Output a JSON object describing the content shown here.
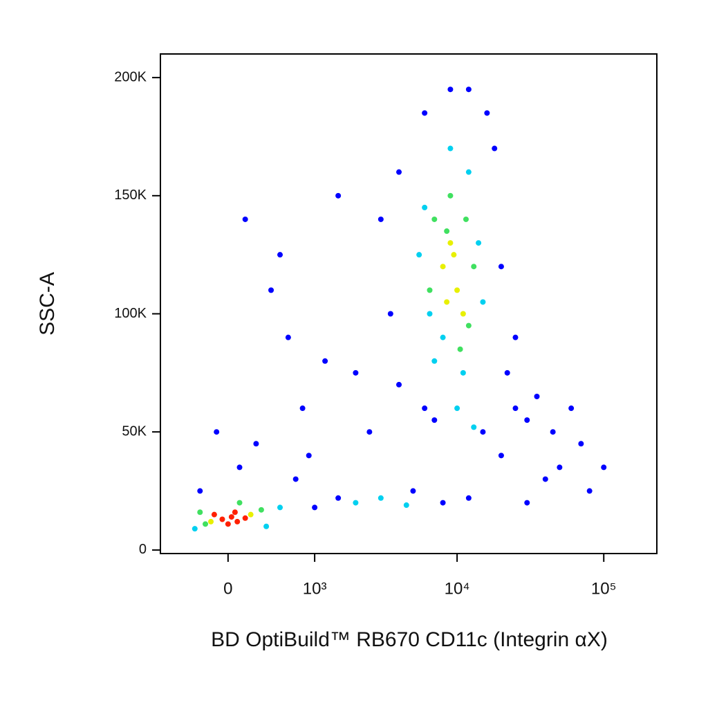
{
  "chart_data": {
    "type": "scatter",
    "x_label": "BD OptiBuild™ RB670 CD11c (Integrin αX)",
    "y_label": "SSC-A",
    "xscale": "biexponential",
    "xlim": [
      -700,
      230000
    ],
    "xticks": [
      0,
      {
        "value": 1000,
        "label": "10³"
      },
      {
        "value": 10000,
        "label": "10⁴"
      },
      {
        "value": 100000,
        "label": "10⁵"
      }
    ],
    "ylim": [
      -1500,
      210000
    ],
    "yticks": [
      0,
      {
        "value": 50000,
        "label": "50K"
      },
      {
        "value": 100000,
        "label": "100K"
      },
      {
        "value": 150000,
        "label": "150K"
      },
      {
        "value": 200000,
        "label": "200K"
      }
    ],
    "series": [
      {
        "color": "#0000ff",
        "x": [
          1000,
          1500,
          5000,
          8000,
          12000,
          20000,
          30000,
          50000,
          70000,
          40000,
          25000,
          60000,
          100000,
          18000,
          6000,
          12000,
          4000,
          3500,
          4000,
          2500,
          800,
          600,
          400,
          1200,
          -100,
          100,
          700,
          20000,
          25000,
          22000,
          16000,
          9000,
          3000,
          30000,
          80000,
          150,
          1500,
          -250,
          250,
          2000,
          6000,
          45000,
          35000,
          15000,
          7000,
          500,
          900
        ],
        "values": [
          18000,
          22000,
          25000,
          20000,
          22000,
          40000,
          55000,
          35000,
          45000,
          30000,
          60000,
          60000,
          35000,
          170000,
          185000,
          195000,
          160000,
          100000,
          70000,
          50000,
          60000,
          90000,
          110000,
          80000,
          50000,
          35000,
          30000,
          120000,
          90000,
          75000,
          185000,
          195000,
          140000,
          20000,
          25000,
          140000,
          150000,
          25000,
          45000,
          75000,
          60000,
          50000,
          65000,
          50000,
          55000,
          125000,
          40000
        ]
      },
      {
        "color": "#00d0f0",
        "x": [
          500,
          -300,
          350,
          6000,
          14000,
          8000,
          12000,
          5500,
          11000,
          15000,
          9000,
          7000,
          2000,
          3000,
          4500,
          10000,
          13000,
          6500
        ],
        "values": [
          18000,
          9000,
          10000,
          145000,
          130000,
          90000,
          160000,
          125000,
          75000,
          105000,
          170000,
          80000,
          20000,
          22000,
          19000,
          60000,
          52000,
          100000
        ]
      },
      {
        "color": "#40e060",
        "x": [
          300,
          -200,
          100,
          -250,
          7000,
          12000,
          9000,
          13000,
          6500,
          10500,
          8500,
          11500
        ],
        "values": [
          17000,
          11000,
          20000,
          16000,
          140000,
          95000,
          150000,
          120000,
          110000,
          85000,
          135000,
          140000
        ]
      },
      {
        "color": "#e8f000",
        "x": [
          8000,
          10000,
          9000,
          11000,
          8500,
          9500,
          200,
          -150
        ],
        "values": [
          120000,
          110000,
          130000,
          100000,
          105000,
          125000,
          15000,
          12000
        ]
      },
      {
        "color": "#ff2000",
        "x": [
          -50,
          30,
          80,
          -120,
          150,
          0,
          60
        ],
        "values": [
          13000,
          14000,
          12000,
          15000,
          13500,
          11000,
          16000
        ]
      }
    ]
  }
}
